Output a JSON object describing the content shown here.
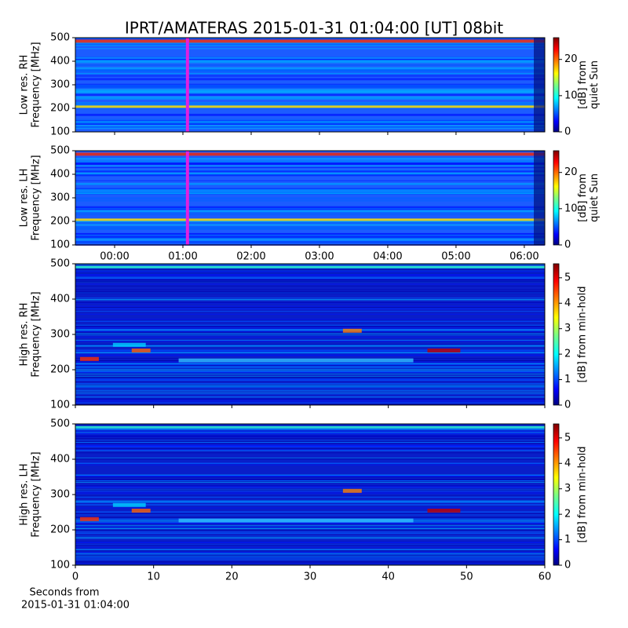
{
  "chart_data": [
    {
      "type": "spectrogram",
      "title": "IPRT/AMATERAS 2015-01-31 01:04:00 [UT]   08bit",
      "ylabel": [
        "Low res. RH",
        "Frequency [MHz]"
      ],
      "ylim": [
        100,
        500
      ],
      "yticks": [
        100,
        200,
        300,
        400,
        500
      ],
      "xlim": [
        -0.575,
        6.3
      ],
      "xticks": [
        {
          "value": 0,
          "label": "00:00"
        },
        {
          "value": 1,
          "label": "01:00"
        },
        {
          "value": 2,
          "label": "02:00"
        },
        {
          "value": 3,
          "label": "03:00"
        },
        {
          "value": 4,
          "label": "04:00"
        },
        {
          "value": 5,
          "label": "05:00"
        },
        {
          "value": 6,
          "label": "06:00"
        }
      ],
      "xtick_labels_shown": false,
      "marker": 1.067,
      "marker_color": "#e020e0",
      "colorbar": {
        "label": [
          "[dB] from",
          "quiet Sun"
        ],
        "clim": [
          0,
          26
        ],
        "ticks": [
          0,
          10,
          20
        ],
        "colormap": "jet"
      }
    },
    {
      "type": "spectrogram",
      "ylabel": [
        "Low res. LH",
        "Frequency [MHz]"
      ],
      "ylim": [
        100,
        500
      ],
      "yticks": [
        100,
        200,
        300,
        400,
        500
      ],
      "xlim": [
        -0.575,
        6.3
      ],
      "xticks": [
        {
          "value": 0,
          "label": "00:00"
        },
        {
          "value": 1,
          "label": "01:00"
        },
        {
          "value": 2,
          "label": "02:00"
        },
        {
          "value": 3,
          "label": "03:00"
        },
        {
          "value": 4,
          "label": "04:00"
        },
        {
          "value": 5,
          "label": "05:00"
        },
        {
          "value": 6,
          "label": "06:00"
        }
      ],
      "xtick_labels_shown": true,
      "marker": 1.067,
      "marker_color": "#e020e0",
      "colorbar": {
        "label": [
          "[dB] from",
          "quiet Sun"
        ],
        "clim": [
          0,
          26
        ],
        "ticks": [
          0,
          10,
          20
        ],
        "colormap": "jet"
      }
    },
    {
      "type": "spectrogram",
      "ylabel": [
        "High res. RH",
        "Frequency [MHz]"
      ],
      "ylim": [
        100,
        500
      ],
      "yticks": [
        100,
        200,
        300,
        400,
        500
      ],
      "xlim": [
        0,
        60
      ],
      "xticks": [
        0,
        10,
        20,
        30,
        40,
        50,
        60
      ],
      "xtick_labels_shown": false,
      "colorbar": {
        "label": [
          "[dB] from min-hold"
        ],
        "clim": [
          0,
          5.55
        ],
        "ticks": [
          0,
          1,
          2,
          3,
          4,
          5
        ],
        "colormap": "jet"
      }
    },
    {
      "type": "spectrogram",
      "ylabel": [
        "High res. LH",
        "Frequency [MHz]"
      ],
      "ylim": [
        100,
        500
      ],
      "yticks": [
        100,
        200,
        300,
        400,
        500
      ],
      "xlim": [
        0,
        60
      ],
      "xticks": [
        0,
        10,
        20,
        30,
        40,
        50,
        60
      ],
      "xtick_labels_shown": true,
      "xlabel": [
        "Seconds from",
        "2015-01-31 01:04:00"
      ],
      "colorbar": {
        "label": [
          "[dB] from min-hold"
        ],
        "clim": [
          0,
          5.55
        ],
        "ticks": [
          0,
          1,
          2,
          3,
          4,
          5
        ],
        "colormap": "jet"
      }
    }
  ]
}
